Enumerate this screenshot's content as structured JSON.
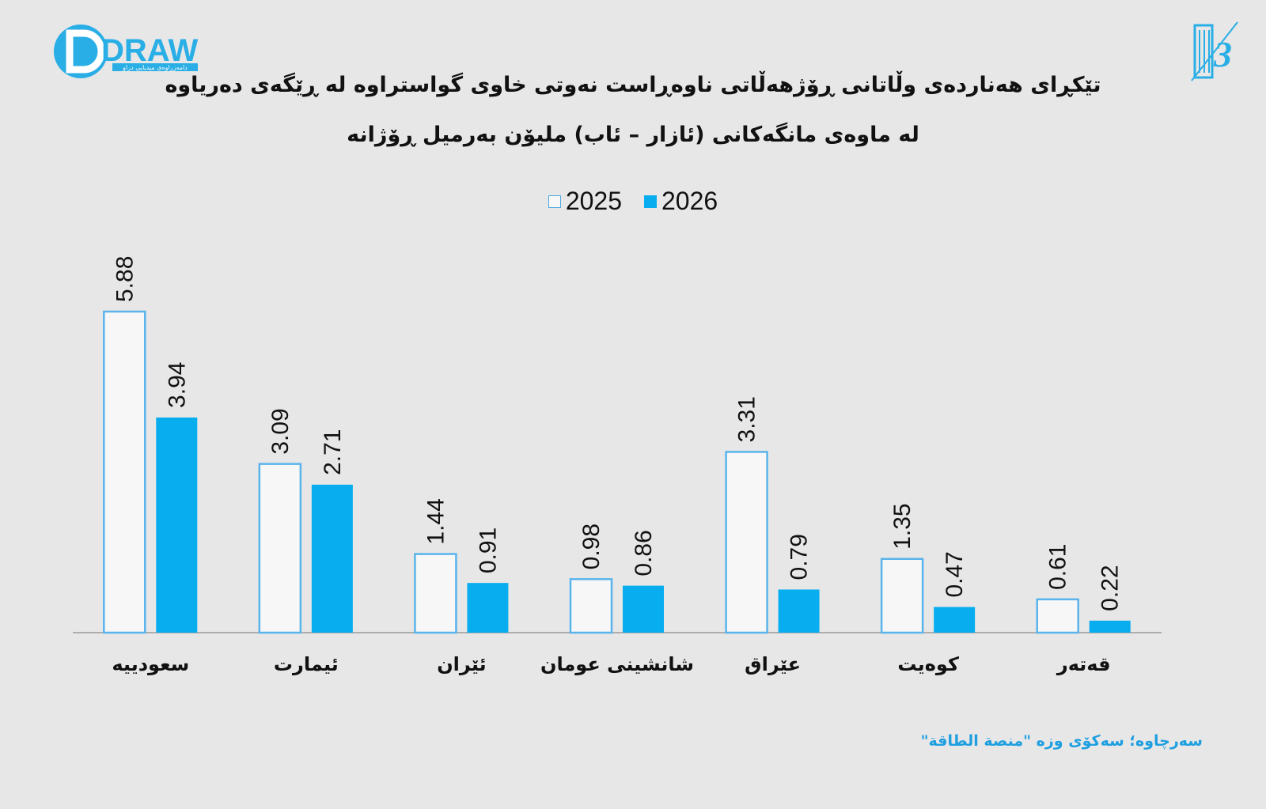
{
  "logo": {
    "brand_text": "DRAW",
    "tagline": "دامەزراوەی میدیایی دراو",
    "right_mark": "3"
  },
  "chart_data": {
    "type": "bar",
    "title": "تێکڕای هەناردەی وڵاتانی ڕۆژهەڵاتی ناوەڕاست نەوتی خاوی گواستراوە لە ڕێگەی دەریاوە",
    "subtitle": "لە ماوەی مانگەکانی (ئازار – ئاب) ملیۆن بەرمیل ڕۆژانە",
    "categories": [
      "سعودییە",
      "ئیمارت",
      "ئێران",
      "شانشینی عومان",
      "عێراق",
      "کوەیت",
      "قەتەر"
    ],
    "series": [
      {
        "name": "2025",
        "values": [
          5.88,
          3.09,
          1.44,
          0.98,
          3.31,
          1.35,
          0.61
        ],
        "color": "#f7f7f7",
        "stroke": "#5ab4ec"
      },
      {
        "name": "2026",
        "values": [
          3.94,
          2.71,
          0.91,
          0.86,
          0.79,
          0.47,
          0.22
        ],
        "color": "#08adef"
      }
    ],
    "ylim": [
      0,
      6.3
    ],
    "grid": false,
    "legend": "top-center",
    "data_labels": [
      "5.88",
      "3.09",
      "1.44",
      "0.98",
      "3.31",
      "1.35",
      "0.61",
      "3.94",
      "2.71",
      "0.91",
      "0.86",
      "0.79",
      "0.47",
      "0.22"
    ]
  },
  "source": "سەرچاوە؛ سەکۆی وزە \"منصة الطاقة\""
}
